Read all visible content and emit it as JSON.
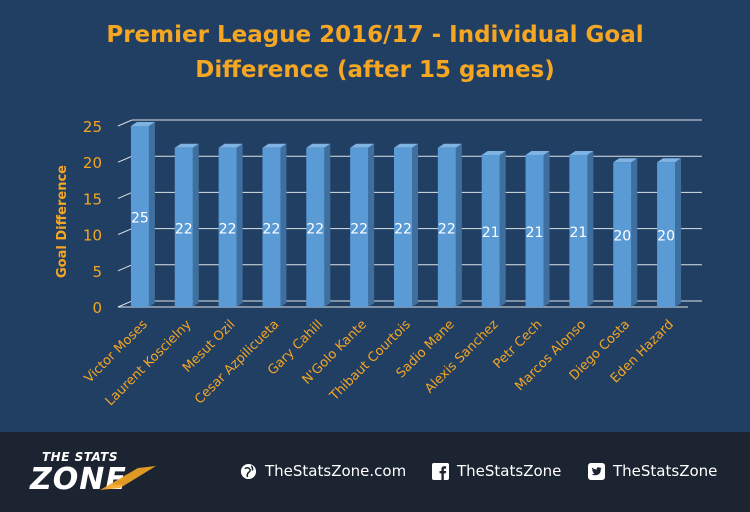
{
  "chart_data": {
    "type": "bar",
    "title_line1": "Premier League 2016/17 - Individual Goal",
    "title_line2": "Difference (after 15 games)",
    "ylabel": "Goal  Difference",
    "xlabel": "",
    "ylim": [
      0,
      25
    ],
    "yticks": [
      "0",
      "5",
      "10",
      "15",
      "20",
      "25"
    ],
    "categories": [
      "Victor Moses",
      "Laurent Koscielny",
      "Mesut Ozil",
      "Cesar Azpilicueta",
      "Gary Cahill",
      "N'Golo Kante",
      "Thibaut Courtois",
      "Sadio Mane",
      "Alexis Sanchez",
      "Petr Cech",
      "Marcos Alonso",
      "Diego Costa",
      "Eden Hazard"
    ],
    "values": [
      25,
      22,
      22,
      22,
      22,
      22,
      22,
      22,
      21,
      21,
      21,
      20,
      20
    ],
    "grid": true,
    "bar_color": "#5b9bd5",
    "accent_color": "#f5a623"
  },
  "footer": {
    "logo_top": "THE STATS",
    "logo_bottom": "ZONE",
    "website": "TheStatsZone.com",
    "facebook": "TheStatsZone",
    "twitter": "TheStatsZone",
    "icons": [
      "globe-icon",
      "facebook-icon",
      "twitter-icon"
    ]
  }
}
